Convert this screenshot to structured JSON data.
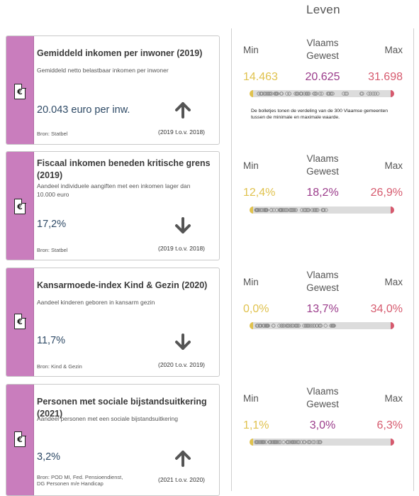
{
  "header": {
    "title": "Leven"
  },
  "cards": [
    {
      "icon": "euro-document-icon",
      "title": "Gemiddeld inkomen per inwoner (2019)",
      "subtitle": "Gemiddeld netto belastbaar inkomen per inwoner",
      "value": "20.043 euro per inw.",
      "trend": "up",
      "source": "Bron: Statbel",
      "period": "(2019 t.o.v. 2018)"
    },
    {
      "icon": "euro-document-icon",
      "title": "Fiscaal inkomen beneden kritische grens (2019)",
      "subtitle": "Aandeel individuele aangiften met een inkomen lager dan 10.000 euro",
      "value": "17,2%",
      "trend": "down",
      "source": "Bron: Statbel",
      "period": "(2019 t.o.v. 2018)"
    },
    {
      "icon": "euro-document-icon",
      "title": "Kansarmoede-index Kind & Gezin (2020)",
      "subtitle": "Aandeel kinderen geboren in kansarm gezin",
      "value": "11,7%",
      "trend": "down",
      "source": "Bron: Kind & Gezin",
      "period": "(2020 t.o.v. 2019)"
    },
    {
      "icon": "euro-document-icon",
      "title": "Personen met sociale bijstandsuitkering (2021)",
      "subtitle": "Aandeel personen met een sociale bijstandsuitkering",
      "value": "3,2%",
      "trend": "up",
      "source": "Bron: POD MI, Fed. Pensioendienst, DG Personen m/e Handicap",
      "period": "(2021 t.o.v. 2020)"
    }
  ],
  "stats": [
    {
      "min_label": "Min",
      "region_label": "Vlaams Gewest",
      "max_label": "Max",
      "min": "14.463",
      "region": "20.625",
      "max": "31.698"
    },
    {
      "min_label": "Min",
      "region_label": "Vlaams Gewest",
      "max_label": "Max",
      "min": "12,4%",
      "region": "18,2%",
      "max": "26,9%"
    },
    {
      "min_label": "Min",
      "region_label": "Vlaams Gewest",
      "max_label": "Max",
      "min": "0,0%",
      "region": "13,7%",
      "max": "34,0%"
    },
    {
      "min_label": "Min",
      "region_label": "Vlaams Gewest",
      "max_label": "Max",
      "min": "1,1%",
      "region": "3,0%",
      "max": "6,3%"
    }
  ],
  "note": "De bolletjes tonen de verdeling van de 300 Vlaamse gemeenten tussen de minimale en maximale waarde.",
  "colors": {
    "accent_strip": "#c97dbd",
    "min_color": "#e0c24e",
    "region_color": "#9b3c8b",
    "max_color": "#d65a6e",
    "value_color": "#2e4a66",
    "arrow_color": "#555555"
  }
}
